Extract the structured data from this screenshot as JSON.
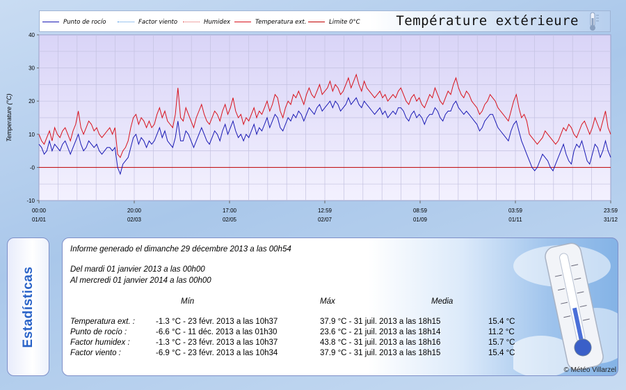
{
  "colors": {
    "dew": "#1a1ab4",
    "wind": "#3a8de0",
    "humidex": "#e05050",
    "temp": "#d8121c",
    "limit": "#c00000",
    "title_blue": "#2a63c8"
  },
  "legend": [
    {
      "label": "Punto de rocío",
      "style": "solid",
      "color": "#1a1ab4"
    },
    {
      "label": "Factor viento",
      "style": "dotted",
      "color": "#3a8de0"
    },
    {
      "label": "Humidex",
      "style": "dotted",
      "color": "#e05050"
    },
    {
      "label": "Temperatura ext.",
      "style": "solid",
      "color": "#d8121c"
    },
    {
      "label": "Limite 0°C",
      "style": "solid",
      "color": "#c00000"
    }
  ],
  "title": "Température extérieure",
  "chart_data": {
    "type": "line",
    "ylabel": "Temperature (°C)",
    "ylim": [
      -10,
      40
    ],
    "yticks": [
      -10,
      0,
      10,
      20,
      30,
      40
    ],
    "x_ticks": [
      {
        "time": "00:00",
        "date": "01/01"
      },
      {
        "time": "20:00",
        "date": "02/03"
      },
      {
        "time": "17:00",
        "date": "02/05"
      },
      {
        "time": "12:59",
        "date": "02/07"
      },
      {
        "time": "08:59",
        "date": "01/09"
      },
      {
        "time": "03:59",
        "date": "01/11"
      },
      {
        "time": "23:59",
        "date": "31/12"
      }
    ],
    "series": [
      {
        "name": "Temperatura ext.",
        "key": "temp",
        "values": [
          10,
          8,
          7,
          9,
          11,
          8,
          12,
          10,
          9,
          11,
          12,
          10,
          8,
          11,
          13,
          17,
          12,
          10,
          12,
          14,
          13,
          11,
          12,
          10,
          9,
          10,
          11,
          12,
          10,
          12,
          4,
          3,
          5,
          6,
          8,
          12,
          15,
          16,
          13,
          15,
          14,
          12,
          14,
          12,
          13,
          16,
          18,
          15,
          17,
          14,
          13,
          12,
          16,
          24,
          15,
          14,
          18,
          16,
          14,
          12,
          15,
          17,
          19,
          16,
          14,
          13,
          15,
          17,
          16,
          14,
          17,
          19,
          16,
          18,
          21,
          17,
          15,
          16,
          13,
          15,
          14,
          16,
          18,
          15,
          17,
          16,
          18,
          20,
          17,
          19,
          22,
          21,
          17,
          15,
          18,
          20,
          19,
          22,
          21,
          23,
          21,
          19,
          22,
          24,
          22,
          21,
          23,
          25,
          22,
          23,
          24,
          26,
          23,
          25,
          24,
          22,
          23,
          25,
          27,
          24,
          26,
          28,
          25,
          23,
          26,
          24,
          23,
          22,
          21,
          22,
          23,
          21,
          22,
          20,
          21,
          22,
          21,
          23,
          24,
          22,
          20,
          19,
          21,
          22,
          20,
          21,
          19,
          18,
          20,
          22,
          21,
          24,
          22,
          20,
          19,
          21,
          23,
          22,
          25,
          27,
          24,
          22,
          21,
          23,
          22,
          20,
          19,
          18,
          16,
          17,
          19,
          20,
          22,
          21,
          20,
          18,
          17,
          16,
          15,
          14,
          17,
          20,
          22,
          18,
          15,
          16,
          14,
          10,
          9,
          8,
          7,
          8,
          9,
          11,
          10,
          9,
          8,
          7,
          8,
          10,
          12,
          11,
          13,
          12,
          10,
          9,
          11,
          13,
          14,
          12,
          10,
          12,
          15,
          13,
          11,
          14,
          17,
          12,
          10
        ]
      },
      {
        "name": "Punto de rocío",
        "key": "dew",
        "values": [
          7,
          6,
          4,
          5,
          8,
          5,
          7,
          6,
          5,
          7,
          8,
          6,
          4,
          6,
          8,
          10,
          7,
          5,
          6,
          8,
          7,
          6,
          7,
          5,
          4,
          5,
          6,
          6,
          5,
          6,
          0,
          -2,
          1,
          2,
          3,
          6,
          9,
          10,
          7,
          9,
          8,
          6,
          8,
          7,
          8,
          10,
          12,
          9,
          11,
          8,
          7,
          6,
          9,
          14,
          8,
          8,
          11,
          10,
          8,
          6,
          8,
          10,
          12,
          10,
          8,
          7,
          9,
          11,
          10,
          8,
          11,
          13,
          10,
          12,
          14,
          11,
          9,
          10,
          8,
          10,
          9,
          11,
          13,
          10,
          12,
          11,
          13,
          15,
          12,
          14,
          16,
          15,
          12,
          11,
          13,
          15,
          14,
          16,
          15,
          17,
          16,
          14,
          16,
          18,
          17,
          16,
          18,
          19,
          17,
          18,
          19,
          20,
          18,
          20,
          19,
          17,
          18,
          19,
          21,
          19,
          20,
          21,
          19,
          18,
          20,
          19,
          18,
          17,
          16,
          17,
          18,
          16,
          17,
          15,
          16,
          17,
          16,
          18,
          18,
          17,
          15,
          14,
          16,
          17,
          15,
          16,
          15,
          13,
          15,
          16,
          16,
          18,
          17,
          15,
          14,
          16,
          17,
          17,
          19,
          20,
          18,
          17,
          16,
          17,
          16,
          15,
          14,
          13,
          11,
          12,
          14,
          15,
          16,
          16,
          14,
          12,
          11,
          10,
          9,
          8,
          11,
          13,
          14,
          11,
          8,
          6,
          4,
          2,
          0,
          -1,
          0,
          2,
          4,
          3,
          2,
          0,
          -1,
          1,
          3,
          5,
          7,
          4,
          2,
          1,
          5,
          7,
          6,
          8,
          5,
          2,
          1,
          4,
          7,
          6,
          3,
          5,
          8,
          5,
          3
        ]
      },
      {
        "name": "Limite 0°C",
        "key": "limit",
        "values": [
          0
        ]
      }
    ]
  },
  "stats": {
    "tab_label": "Estadísticas",
    "report_line": "Informe generado el dimanche 29 décembre 2013 a las 00h54",
    "from_line": "Del mardi 01 janvier 2013 a las 00h00",
    "to_line": "Al mercredi 01 janvier 2014 a las 00h00",
    "header_min": "Mín",
    "header_max": "Máx",
    "header_avg": "Media",
    "rows": [
      {
        "label": "Temperatura ext. :",
        "min": "-1.3 °C - 23 févr. 2013 a las 10h37",
        "max": "37.9 °C - 31 juil. 2013 a las 18h15",
        "avg": "15.4 °C"
      },
      {
        "label": "Punto de rocío :",
        "min": "-6.6 °C - 11 déc. 2013 a las 01h30",
        "max": "23.6 °C - 21 juil. 2013 a las 18h14",
        "avg": "11.2 °C"
      },
      {
        "label": "Factor humidex :",
        "min": "-1.3 °C - 23 févr. 2013 a las 10h37",
        "max": "43.8 °C - 31 juil. 2013 a las 18h16",
        "avg": "15.7 °C"
      },
      {
        "label": "Factor viento :",
        "min": "-6.9 °C - 23 févr. 2013 a las 10h34",
        "max": "37.9 °C - 31 juil. 2013 a las 18h15",
        "avg": "15.4 °C"
      }
    ],
    "credit": "© Météo Villarzel"
  }
}
